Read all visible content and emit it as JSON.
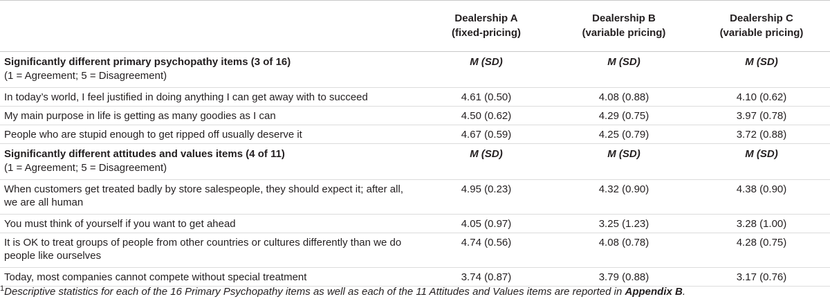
{
  "header": {
    "columns": [
      {
        "name": "Dealership A",
        "sub": "(fixed-pricing)"
      },
      {
        "name": "Dealership B",
        "sub": "(variable pricing)"
      },
      {
        "name": "Dealership C",
        "sub": "(variable pricing)"
      }
    ]
  },
  "sections": [
    {
      "title": "Significantly different primary psychopathy items (3 of 16)",
      "scale": "(1 = Agreement; 5 = Disagreement)",
      "msd": "M (SD)",
      "rows": [
        {
          "item": "In today’s world, I feel justified in doing anything I can get away with to succeed",
          "a": "4.61 (0.50)",
          "b": "4.08 (0.88)",
          "c": "4.10 (0.62)"
        },
        {
          "item": "My main purpose in life is getting as many goodies as I can",
          "a": "4.50 (0.62)",
          "b": "4.29 (0.75)",
          "c": "3.97 (0.78)"
        },
        {
          "item": "People who are stupid enough to get ripped off usually deserve it",
          "a": "4.67 (0.59)",
          "b": "4.25 (0.79)",
          "c": "3.72 (0.88)"
        }
      ]
    },
    {
      "title": "Significantly different attitudes and values items (4 of 11)",
      "scale": "(1 = Agreement; 5 = Disagreement)",
      "msd": "M (SD)",
      "rows": [
        {
          "item": "When customers get treated badly by store salespeople, they should expect it; after all, we are all human",
          "a": "4.95 (0.23)",
          "b": "4.32 (0.90)",
          "c": "4.38 (0.90)"
        },
        {
          "item": "You must think of yourself if you want to get ahead",
          "a": "4.05 (0.97)",
          "b": "3.25 (1.23)",
          "c": "3.28 (1.00)"
        },
        {
          "item": "It is OK to treat groups of people from other countries or cultures differently than we do people like ourselves",
          "a": "4.74 (0.56)",
          "b": "4.08 (0.78)",
          "c": "4.28 (0.75)"
        },
        {
          "item": "Today, most companies cannot compete without special treatment",
          "a": "3.74 (0.87)",
          "b": "3.79 (0.88)",
          "c": "3.17 (0.76)"
        }
      ]
    }
  ],
  "footnote": {
    "marker": "1",
    "text": "Descriptive statistics for each of the 16 Primary Psychopathy items as well as each of the 11 Attitudes and Values items are reported in ",
    "link": "Appendix B",
    "end": "."
  }
}
